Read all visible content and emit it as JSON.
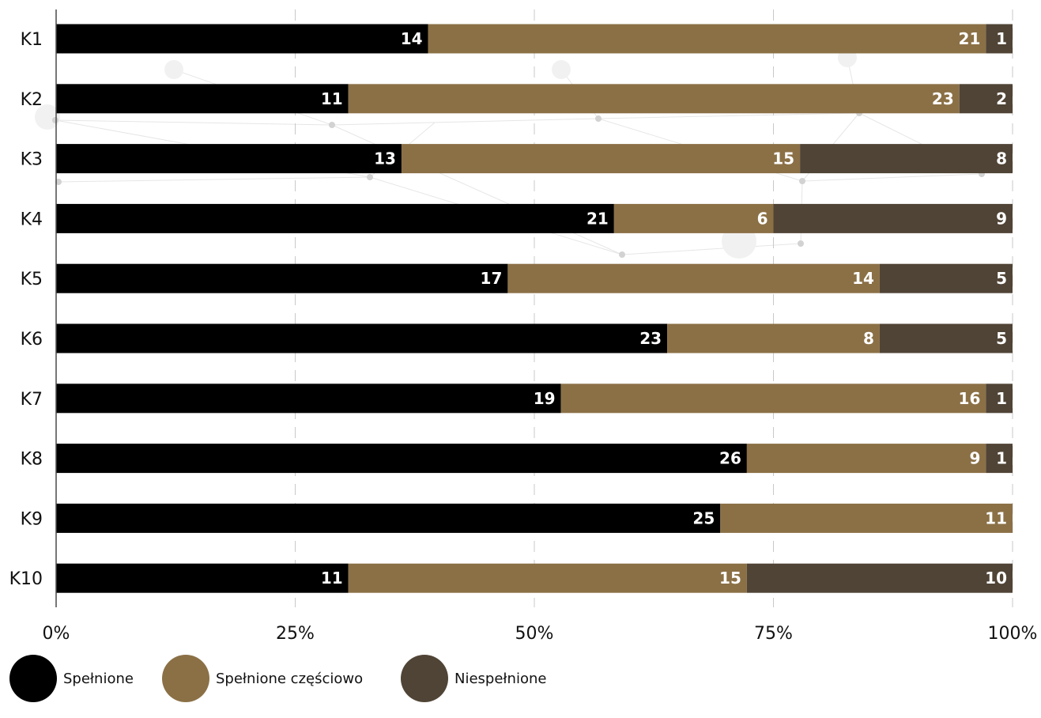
{
  "chart_data": {
    "type": "bar",
    "orientation": "horizontal",
    "stacked": "percent",
    "title": "",
    "categories": [
      "K1",
      "K2",
      "K3",
      "K4",
      "K5",
      "K6",
      "K7",
      "K8",
      "K9",
      "K10"
    ],
    "series": [
      {
        "name": "Spełnione",
        "color": "#000000",
        "values": [
          14,
          11,
          13,
          21,
          17,
          23,
          19,
          26,
          25,
          11
        ]
      },
      {
        "name": "Spełnione częściowo",
        "color": "#8B7046",
        "values": [
          21,
          23,
          15,
          6,
          14,
          8,
          16,
          9,
          11,
          15
        ]
      },
      {
        "name": "Niespełnione",
        "color": "#504436",
        "values": [
          1,
          2,
          8,
          9,
          5,
          5,
          1,
          1,
          0,
          10
        ]
      }
    ],
    "x_ticks": [
      "0%",
      "25%",
      "50%",
      "75%",
      "100%"
    ],
    "xlim": [
      0,
      100
    ],
    "grid": true,
    "legend_position": "bottom-left",
    "xlabel": "",
    "ylabel": ""
  }
}
